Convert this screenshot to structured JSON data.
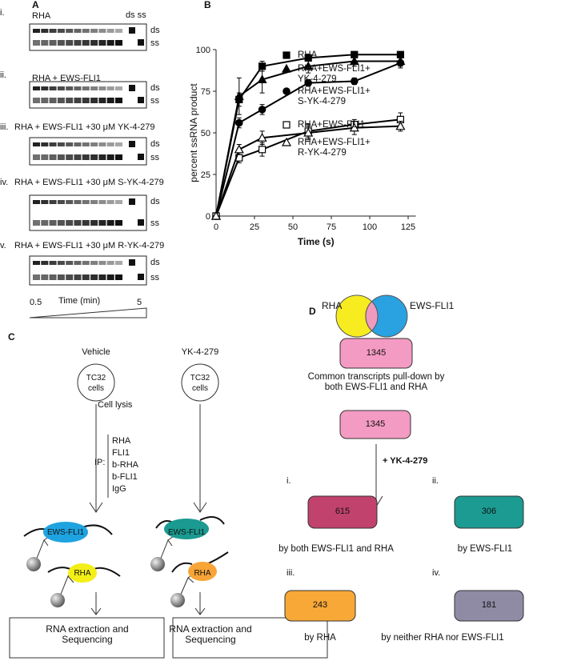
{
  "panel_a": {
    "label": "A",
    "top_label": "ds ss",
    "gels": [
      {
        "index": "i.",
        "title": "RHA",
        "side_labels": [
          "ds",
          "ss"
        ]
      },
      {
        "index": "ii.",
        "title": "RHA  + EWS-FLI1",
        "side_labels": [
          "ds",
          "ss"
        ]
      },
      {
        "index": "iii.",
        "title": "RHA + EWS-FLI1 +30 μM YK-4-279",
        "side_labels": [
          "ds",
          "ss"
        ]
      },
      {
        "index": "iv.",
        "title": "RHA + EWS-FLI1 +30 μM S-YK-4-279",
        "side_labels": [
          "ds",
          "ss"
        ]
      },
      {
        "index": "v.",
        "title": "RHA + EWS-FLI1 +30 μM R-YK-4-279",
        "side_labels": [
          "ds",
          "ss"
        ]
      }
    ],
    "time_start": "0.5",
    "time_label": "Time (min)",
    "time_end": "5"
  },
  "chart_data": {
    "type": "line",
    "label": "B",
    "x_label": "Time (s)",
    "y_label": "percent ssRNA product",
    "x": [
      0,
      15,
      30,
      60,
      90,
      120
    ],
    "series": [
      {
        "name": "RHA",
        "color": "#000000",
        "marker": "square",
        "filled": true,
        "values": [
          0,
          70,
          90,
          95,
          97,
          97
        ],
        "errors": [
          0,
          4,
          3,
          1,
          1,
          1
        ]
      },
      {
        "name": "RHA+EWS-FLI1+ YK-4-279",
        "color": "#000000",
        "marker": "triangle",
        "filled": true,
        "values": [
          0,
          72,
          82,
          90,
          93,
          93
        ],
        "errors": [
          0,
          11,
          8,
          4,
          3,
          3
        ]
      },
      {
        "name": "RHA+EWS-FLI1+ S-YK-4-279",
        "color": "#000000",
        "marker": "circle",
        "filled": true,
        "values": [
          0,
          56,
          64,
          80,
          81,
          92
        ],
        "errors": [
          0,
          3,
          3,
          2,
          2,
          3
        ]
      },
      {
        "name": "RHA+EWS-FLI1",
        "color": "#000000",
        "marker": "square",
        "filled": false,
        "values": [
          0,
          35,
          40,
          51,
          55,
          58
        ],
        "errors": [
          0,
          3,
          4,
          4,
          3,
          4
        ]
      },
      {
        "name": "RHA+EWS-FLI1+ R-YK-4-279",
        "color": "#000000",
        "marker": "triangle",
        "filled": false,
        "values": [
          0,
          40,
          47,
          50,
          53,
          54
        ],
        "errors": [
          0,
          3,
          4,
          4,
          4,
          3
        ]
      }
    ],
    "xlim": [
      0,
      130
    ],
    "xticks": [
      0,
      25,
      50,
      75,
      100,
      125
    ],
    "ylim": [
      0,
      100
    ],
    "yticks": [
      0,
      25,
      50,
      75,
      100
    ],
    "grid": false
  },
  "panel_c": {
    "label": "C",
    "lysis": "Cell lysis",
    "ip_label": "IP:",
    "ip_targets": [
      "RHA",
      "FLI1",
      "b-RHA",
      "b-FLI1",
      "IgG"
    ],
    "vehicle": {
      "title": "Vehicle",
      "cells": "TC32 cells",
      "protein_a": "EWS-FLI1",
      "protein_b": "RHA",
      "output": "RNA extraction and Sequencing"
    },
    "treated": {
      "title": "YK-4-279",
      "cells": "TC32 cells",
      "protein_a": "EWS-FLI1",
      "protein_b": "RHA",
      "output": "RNA extraction and Sequencing"
    }
  },
  "panel_d": {
    "label": "D",
    "venn_left": "RHA",
    "venn_right": "EWS-FLI1",
    "common_count": "1345",
    "common_caption": "Common transcripts pull-down by both EWS-FLI1 and RHA",
    "start_count": "1345",
    "treatment": "+ YK-4-279",
    "outcomes": [
      {
        "index": "i.",
        "count": "615",
        "caption": "by both EWS-FLI1 and RHA"
      },
      {
        "index": "ii.",
        "count": "306",
        "caption": "by EWS-FLI1"
      },
      {
        "index": "iii.",
        "count": "243",
        "caption": "by RHA"
      },
      {
        "index": "iv.",
        "count": "181",
        "caption": "by neither RHA nor EWS-FLI1"
      }
    ]
  }
}
